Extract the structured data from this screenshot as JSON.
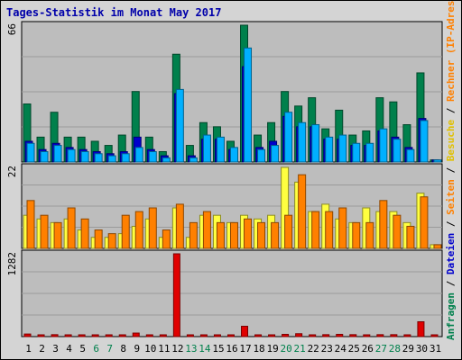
{
  "title": "Tages-Statistik im Monat May 2017",
  "right_label": [
    {
      "text": "Anfragen",
      "color": "#00804c"
    },
    {
      "text": " / ",
      "color": "#000000"
    },
    {
      "text": "Dateien",
      "color": "#0000cc"
    },
    {
      "text": " / ",
      "color": "#000000"
    },
    {
      "text": "Seiten",
      "color": "#ff8000"
    },
    {
      "text": " / ",
      "color": "#000000"
    },
    {
      "text": "Besuche",
      "color": "#e0c000"
    },
    {
      "text": " / ",
      "color": "#000000"
    },
    {
      "text": "Rechner (IP-Adressen)",
      "color": "#ff8000"
    },
    {
      "text": " / ",
      "color": "#000000"
    },
    {
      "text": "kB Out",
      "color": "#ff8000"
    },
    {
      "text": " / ",
      "color": "#000000"
    },
    {
      "text": "kB In",
      "color": "#0000cc"
    },
    {
      "text": " / ",
      "color": "#000000"
    },
    {
      "text": "kB F",
      "color": "#cc0000"
    }
  ],
  "chart_data": [
    {
      "type": "bar",
      "panel": "top",
      "ymax_label": "66",
      "ylim": [
        0,
        66
      ],
      "categories": [
        "1",
        "2",
        "3",
        "4",
        "5",
        "6",
        "7",
        "8",
        "9",
        "10",
        "11",
        "12",
        "13",
        "14",
        "15",
        "16",
        "17",
        "18",
        "19",
        "20",
        "21",
        "22",
        "23",
        "24",
        "25",
        "26",
        "27",
        "28",
        "29",
        "30",
        "31"
      ],
      "weekend_days": [
        "6",
        "7",
        "13",
        "14",
        "20",
        "21",
        "27",
        "28"
      ],
      "series": [
        {
          "name": "Anfragen",
          "color": "#00804c",
          "values": [
            28,
            12,
            24,
            12,
            12,
            10,
            8,
            13,
            34,
            12,
            5,
            52,
            8,
            19,
            17,
            10,
            66,
            13,
            19,
            34,
            27,
            31,
            16,
            25,
            13,
            15,
            31,
            29,
            18,
            43,
            1
          ]
        },
        {
          "name": "Dateien",
          "color": "#0000cc",
          "values": [
            10,
            6,
            9,
            7,
            6,
            5,
            4,
            5,
            12,
            6,
            3,
            33,
            3,
            11,
            11,
            6,
            46,
            7,
            10,
            22,
            17,
            17,
            11,
            11,
            8,
            8,
            15,
            12,
            7,
            21,
            1
          ]
        },
        {
          "name": "Seiten",
          "color": "#00b0ff",
          "values": [
            9,
            5,
            8,
            6,
            5,
            4,
            3,
            4,
            7,
            5,
            2,
            35,
            2,
            13,
            12,
            7,
            55,
            6,
            8,
            24,
            19,
            18,
            12,
            13,
            9,
            9,
            16,
            11,
            6,
            20,
            1
          ]
        }
      ]
    },
    {
      "type": "bar",
      "panel": "middle",
      "ymax_label": "22",
      "ylim": [
        0,
        22
      ],
      "categories": [
        "1",
        "2",
        "3",
        "4",
        "5",
        "6",
        "7",
        "8",
        "9",
        "10",
        "11",
        "12",
        "13",
        "14",
        "15",
        "16",
        "17",
        "18",
        "19",
        "20",
        "21",
        "22",
        "23",
        "24",
        "25",
        "26",
        "27",
        "28",
        "29",
        "30",
        "31"
      ],
      "series": [
        {
          "name": "Besuche",
          "color": "#ffff40",
          "values": [
            9,
            8,
            7,
            8,
            5,
            3,
            3,
            4,
            6,
            8,
            3,
            11,
            3,
            9,
            9,
            7,
            9,
            8,
            9,
            22,
            18,
            10,
            12,
            8,
            7,
            11,
            10,
            10,
            7,
            15,
            1
          ]
        },
        {
          "name": "Rechner (IP-Adressen)",
          "color": "#ff8000",
          "values": [
            13,
            9,
            7,
            11,
            8,
            5,
            4,
            9,
            10,
            11,
            5,
            12,
            7,
            10,
            7,
            7,
            8,
            7,
            7,
            9,
            20,
            10,
            10,
            11,
            7,
            7,
            13,
            9,
            6,
            14,
            1
          ]
        }
      ]
    },
    {
      "type": "bar",
      "panel": "bottom",
      "ymax_label": "1282",
      "ylim": [
        0,
        1282
      ],
      "categories": [
        "1",
        "2",
        "3",
        "4",
        "5",
        "6",
        "7",
        "8",
        "9",
        "10",
        "11",
        "12",
        "13",
        "14",
        "15",
        "16",
        "17",
        "18",
        "19",
        "20",
        "21",
        "22",
        "23",
        "24",
        "25",
        "26",
        "27",
        "28",
        "29",
        "30",
        "31"
      ],
      "series": [
        {
          "name": "kB F",
          "color": "#e00000",
          "values": [
            40,
            20,
            30,
            25,
            25,
            20,
            18,
            20,
            55,
            25,
            15,
            1282,
            20,
            22,
            22,
            20,
            160,
            22,
            25,
            35,
            45,
            25,
            30,
            35,
            30,
            25,
            30,
            30,
            25,
            230,
            10
          ]
        }
      ]
    }
  ]
}
